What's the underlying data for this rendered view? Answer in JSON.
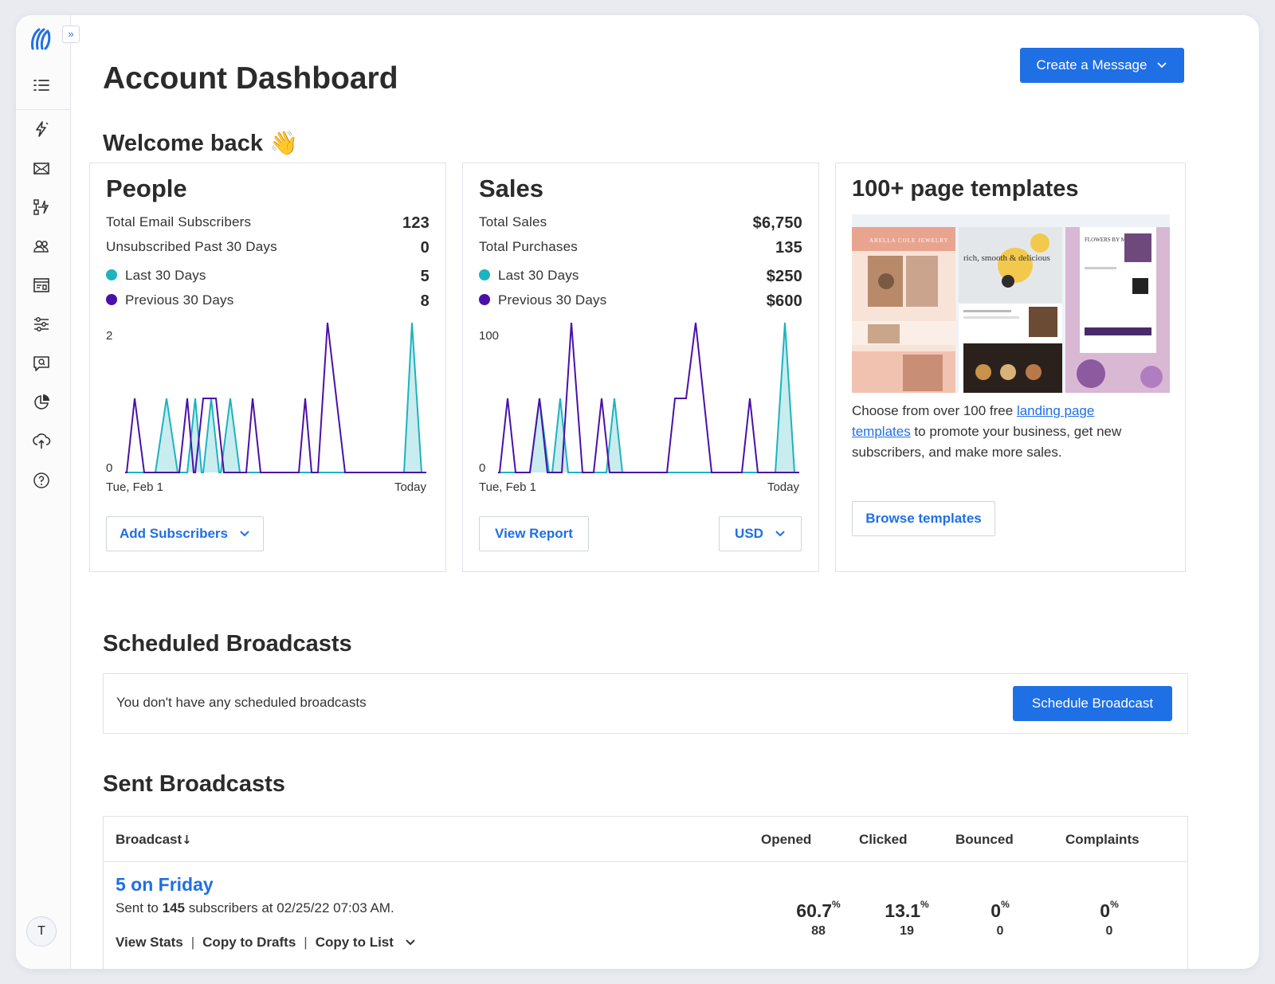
{
  "header": {
    "title": "Account Dashboard",
    "create_label": "Create a Message"
  },
  "sidebar": {
    "expand_label": "»",
    "items": [
      "menu-icon",
      "lightning-icon",
      "envelope-icon",
      "automation-icon",
      "people-icon",
      "landing-page-icon",
      "sliders-icon",
      "chat-icon",
      "pie-chart-icon",
      "integrations-icon",
      "help-icon"
    ],
    "avatar": "T"
  },
  "welcome": {
    "text": "Welcome back",
    "emoji": "👋"
  },
  "people": {
    "title": "People",
    "rows": [
      {
        "label": "Total Email Subscribers",
        "value": "123"
      },
      {
        "label": "Unsubscribed Past 30 Days",
        "value": "0"
      },
      {
        "label": "Last 30 Days",
        "value": "5"
      },
      {
        "label": "Previous 30 Days",
        "value": "8"
      }
    ],
    "chart": {
      "ymax_label": "2",
      "ymin_label": "0",
      "x_start": "Tue, Feb 1",
      "x_end": "Today"
    },
    "button": "Add Subscribers"
  },
  "sales": {
    "title": "Sales",
    "rows": [
      {
        "label": "Total Sales",
        "value": "$6,750"
      },
      {
        "label": "Total Purchases",
        "value": "135"
      },
      {
        "label": "Last 30 Days",
        "value": "$250"
      },
      {
        "label": "Previous 30 Days",
        "value": "$600"
      }
    ],
    "chart": {
      "ymax_label": "100",
      "ymin_label": "0",
      "x_start": "Tue, Feb 1",
      "x_end": "Today"
    },
    "report_button": "View Report",
    "currency": "USD"
  },
  "templates": {
    "title": "100+ page templates",
    "desc_before": "Choose from over 100 free ",
    "desc_link": "landing page templates",
    "desc_after": " to promote your business, get new subscribers, and make more sales.",
    "button": "Browse templates",
    "thumb_texts": {
      "jewelry": "ARELLA COLE JEWELRY",
      "food": "rich, smooth & delicious",
      "flowers": "FLOWERS BY MEGAN"
    }
  },
  "scheduled": {
    "title": "Scheduled Broadcasts",
    "empty": "You don't have any scheduled broadcasts",
    "button": "Schedule Broadcast"
  },
  "sent": {
    "title": "Sent Broadcasts",
    "columns": {
      "broadcast": "Broadcast",
      "sort_arrow": "↓",
      "opened": "Opened",
      "clicked": "Clicked",
      "bounced": "Bounced",
      "complaints": "Complaints"
    },
    "rows": [
      {
        "name": "5 on Friday",
        "sent_prefix": "Sent to ",
        "sent_count": "145",
        "sent_suffix": " subscribers at 02/25/22 07:03 AM.",
        "opened": {
          "pct": "60.7",
          "count": "88"
        },
        "clicked": {
          "pct": "13.1",
          "count": "19"
        },
        "bounced": {
          "pct": "0",
          "count": "0"
        },
        "complaints": {
          "pct": "0",
          "count": "0"
        },
        "actions": [
          "View Stats",
          "Copy to Drafts",
          "Copy to List"
        ],
        "separator": "|"
      }
    ],
    "percent_sign": "%"
  },
  "colors": {
    "primary": "#1f6fe5",
    "last30": "#1db3bf",
    "prev30": "#4b10a8"
  }
}
